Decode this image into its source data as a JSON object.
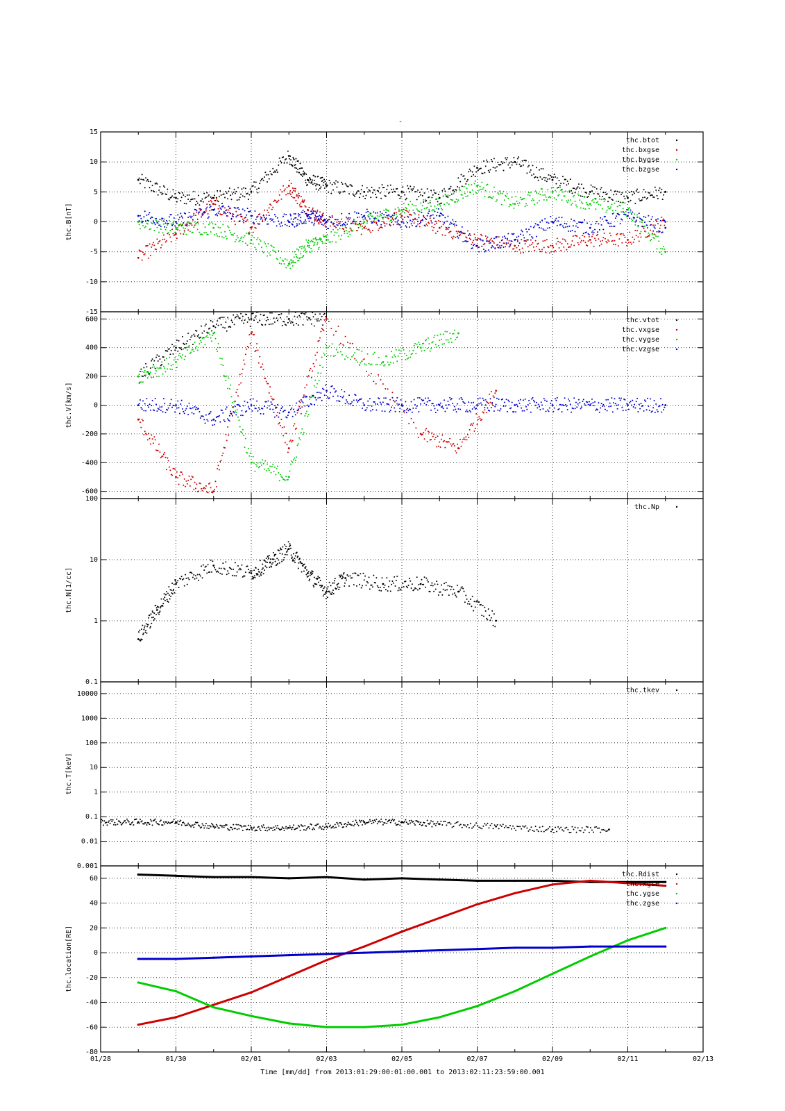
{
  "figure_title": "-",
  "time_label": "Time [mm/dd]  from 2013:01:29:00:01:00.001  to  2013:02:11:23:59:00.001",
  "colors": {
    "black": "#000000",
    "red": "#cc0000",
    "green": "#00cc00",
    "blue": "#0000cc"
  },
  "chart_data": [
    {
      "type": "scatter",
      "ylabel": "thc.B[nT]",
      "xlim": [
        "01/28",
        "02/13"
      ],
      "ylim": [
        -15,
        15
      ],
      "yticks": [
        15,
        10,
        5,
        0,
        -5,
        -10,
        -15
      ],
      "xtick_labels": [
        "01/28",
        "01/30",
        "02/01",
        "02/03",
        "02/05",
        "02/07",
        "02/09",
        "02/11",
        "02/13"
      ],
      "series": [
        {
          "name": "thc.btot",
          "color": "#000000",
          "x": [
            "01/29",
            "01/30",
            "01/31",
            "02/01",
            "02/02",
            "02/02 12h",
            "02/03",
            "02/04",
            "02/05",
            "02/06",
            "02/07",
            "02/08",
            "02/09",
            "02/10",
            "02/11",
            "02/12"
          ],
          "y": [
            7,
            4,
            4,
            5,
            11,
            7,
            6,
            5,
            5,
            4,
            9,
            10,
            7,
            5,
            4,
            5
          ]
        },
        {
          "name": "thc.bxgse",
          "color": "#cc0000",
          "x": [
            "01/29",
            "01/30",
            "01/31",
            "02/01",
            "02/02",
            "02/02 12h",
            "02/03",
            "02/04",
            "02/05",
            "02/06",
            "02/07",
            "02/08",
            "02/09",
            "02/10",
            "02/11",
            "02/12"
          ],
          "y": [
            -6,
            -2,
            3,
            -1,
            6,
            2,
            0,
            -1,
            1,
            -1,
            -3,
            -4,
            -4,
            -3,
            -3,
            0
          ]
        },
        {
          "name": "thc.bygse",
          "color": "#00cc00",
          "x": [
            "01/29",
            "01/30",
            "01/31",
            "02/01",
            "02/02",
            "02/02 12h",
            "02/03",
            "02/04",
            "02/05",
            "02/06",
            "02/07",
            "02/08",
            "02/09",
            "02/10",
            "02/11",
            "02/12"
          ],
          "y": [
            0,
            -1,
            -1,
            -3,
            -7,
            -4,
            -3,
            0,
            2,
            3,
            6,
            3,
            5,
            3,
            2,
            -5
          ]
        },
        {
          "name": "thc.bzgse",
          "color": "#0000cc",
          "x": [
            "01/29",
            "01/30",
            "01/31",
            "02/01",
            "02/02",
            "02/02 12h",
            "02/03",
            "02/04",
            "02/05",
            "02/06",
            "02/07",
            "02/08",
            "02/09",
            "02/10",
            "02/11",
            "02/12"
          ],
          "y": [
            1,
            0,
            2,
            1,
            0,
            1,
            0,
            1,
            0,
            1,
            -4,
            -3,
            0,
            -1,
            1,
            -1
          ]
        }
      ]
    },
    {
      "type": "scatter",
      "ylabel": "thc.V[km/s]",
      "xlim": [
        "01/28",
        "02/13"
      ],
      "ylim": [
        -650,
        650
      ],
      "yticks": [
        600,
        400,
        200,
        0,
        -200,
        -400,
        -600
      ],
      "xtick_labels": [
        "01/28",
        "01/30",
        "02/01",
        "02/03",
        "02/05",
        "02/07",
        "02/09",
        "02/11",
        "02/13"
      ],
      "series": [
        {
          "name": "thc.vtot",
          "color": "#000000",
          "x": [
            "01/29",
            "01/30",
            "01/31",
            "02/01",
            "02/02",
            "02/03"
          ],
          "y": [
            200,
            400,
            550,
            600,
            600,
            600
          ]
        },
        {
          "name": "thc.vxgse",
          "color": "#cc0000",
          "x": [
            "01/29",
            "01/30",
            "01/31",
            "02/01",
            "02/02",
            "02/03",
            "02/05 12h",
            "02/06 12h",
            "02/07 12h"
          ],
          "y": [
            -100,
            -500,
            -600,
            500,
            -300,
            600,
            -200,
            -300,
            100
          ]
        },
        {
          "name": "thc.vygse",
          "color": "#00cc00",
          "x": [
            "01/29",
            "01/30",
            "01/31",
            "02/01",
            "02/02",
            "02/03",
            "02/04 12h",
            "02/05 12h",
            "02/06 12h"
          ],
          "y": [
            200,
            300,
            500,
            -400,
            -500,
            400,
            300,
            400,
            500
          ]
        },
        {
          "name": "thc.vzgse",
          "color": "#0000cc",
          "x": [
            "01/29",
            "01/30",
            "01/31",
            "02/01",
            "02/02",
            "02/03",
            "02/04",
            "02/05",
            "02/06",
            "02/07",
            "02/08",
            "02/09",
            "02/10",
            "02/11",
            "02/12"
          ],
          "y": [
            0,
            0,
            -100,
            0,
            -50,
            100,
            0,
            0,
            0,
            0,
            0,
            0,
            0,
            0,
            0
          ]
        }
      ]
    },
    {
      "type": "scatter",
      "ylabel": "thc.N[1/cc]",
      "xlim": [
        "01/28",
        "02/13"
      ],
      "ylim": [
        0.1,
        100
      ],
      "yscale": "log",
      "yticks": [
        100,
        10,
        1,
        0.1
      ],
      "xtick_labels": [
        "01/28",
        "01/30",
        "02/01",
        "02/03",
        "02/05",
        "02/07",
        "02/09",
        "02/11",
        "02/13"
      ],
      "series": [
        {
          "name": "thc.Np",
          "color": "#000000",
          "x": [
            "01/29",
            "01/29 12h",
            "01/30",
            "01/31",
            "02/01",
            "02/01 12h",
            "02/02",
            "02/02 12h",
            "02/03",
            "02/03 12h",
            "02/04 12h",
            "02/05 12h",
            "02/06 12h",
            "02/07 12h"
          ],
          "y": [
            0.5,
            1.5,
            4,
            8,
            6,
            9,
            15,
            6,
            3,
            5,
            4,
            4,
            3,
            1
          ]
        }
      ]
    },
    {
      "type": "scatter",
      "ylabel": "thc.T[keV]",
      "xlim": [
        "01/28",
        "02/13"
      ],
      "ylim": [
        0.001,
        30000
      ],
      "yscale": "log",
      "yticks": [
        10000,
        1000,
        100,
        10,
        1,
        0.1,
        0.01,
        0.001
      ],
      "ytick_labels": [
        "10000",
        "1000",
        "100",
        "10",
        "1",
        "0.1",
        "0.01",
        "0.001"
      ],
      "xtick_labels": [
        "01/28",
        "01/30",
        "02/01",
        "02/03",
        "02/05",
        "02/07",
        "02/09",
        "02/11",
        "02/13"
      ],
      "series": [
        {
          "name": "thc.tkev",
          "color": "#000000",
          "x": [
            "01/28",
            "01/29",
            "01/30",
            "01/31",
            "02/01",
            "02/02",
            "02/03",
            "02/04",
            "02/05",
            "02/06",
            "02/07 12h",
            "02/09",
            "02/10 12h"
          ],
          "y": [
            0.06,
            0.06,
            0.06,
            0.04,
            0.035,
            0.035,
            0.04,
            0.06,
            0.06,
            0.05,
            0.04,
            0.03,
            0.03
          ]
        }
      ]
    },
    {
      "type": "line",
      "ylabel": "thc.location[RE]",
      "xlim": [
        "01/28",
        "02/13"
      ],
      "ylim": [
        -80,
        70
      ],
      "yticks": [
        60,
        40,
        20,
        0,
        -20,
        -40,
        -60,
        -80
      ],
      "xtick_labels": [
        "01/28",
        "01/30",
        "02/01",
        "02/03",
        "02/05",
        "02/07",
        "02/09",
        "02/11",
        "02/13"
      ],
      "series": [
        {
          "name": "thc.Rdist",
          "color": "#000000",
          "x": [
            "01/29",
            "01/30",
            "01/31",
            "02/01",
            "02/02",
            "02/03",
            "02/04",
            "02/05",
            "02/06",
            "02/07",
            "02/08",
            "02/09",
            "02/10",
            "02/11",
            "02/12"
          ],
          "y": [
            63,
            62,
            61,
            61,
            60,
            61,
            59,
            60,
            59,
            58,
            58,
            58,
            57,
            57,
            57
          ]
        },
        {
          "name": "thc.xgse",
          "color": "#cc0000",
          "x": [
            "01/29",
            "01/30",
            "01/31",
            "02/01",
            "02/02",
            "02/03",
            "02/04",
            "02/05",
            "02/06",
            "02/07",
            "02/08",
            "02/09",
            "02/10",
            "02/11",
            "02/12"
          ],
          "y": [
            -58,
            -52,
            -42,
            -32,
            -19,
            -6,
            5,
            17,
            28,
            39,
            48,
            55,
            58,
            56,
            54
          ]
        },
        {
          "name": "thc.ygse",
          "color": "#00cc00",
          "x": [
            "01/29",
            "01/30",
            "01/31",
            "02/01",
            "02/02",
            "02/03",
            "02/04",
            "02/05",
            "02/06",
            "02/07",
            "02/08",
            "02/09",
            "02/10",
            "02/11",
            "02/12"
          ],
          "y": [
            -24,
            -31,
            -44,
            -51,
            -57,
            -60,
            -60,
            -58,
            -52,
            -43,
            -31,
            -17,
            -3,
            10,
            20
          ]
        },
        {
          "name": "thc.zgse",
          "color": "#0000cc",
          "x": [
            "01/29",
            "01/30",
            "01/31",
            "02/01",
            "02/02",
            "02/03",
            "02/04",
            "02/05",
            "02/06",
            "02/07",
            "02/08",
            "02/09",
            "02/10",
            "02/11",
            "02/12"
          ],
          "y": [
            -5,
            -5,
            -4,
            -3,
            -2,
            -1,
            0,
            1,
            2,
            3,
            4,
            4,
            5,
            5,
            5
          ]
        }
      ]
    }
  ]
}
